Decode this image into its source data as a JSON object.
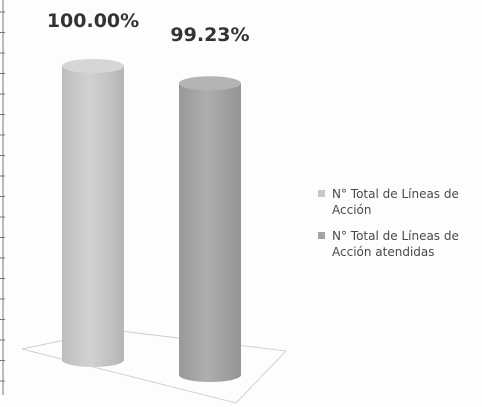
{
  "chart_data": {
    "type": "bar",
    "style": "3d-cylinder",
    "series": [
      {
        "name": "N° Total de Líneas de Acción",
        "value": 100.0,
        "label": "100.00%",
        "color": "#c8c8c8"
      },
      {
        "name": "N° Total de Líneas de Acción atendidas",
        "value": 99.23,
        "label": "99.23%",
        "color": "#a4a4a4"
      }
    ],
    "ylim": [
      0,
      100
    ],
    "legend_position": "right",
    "grid": false
  }
}
